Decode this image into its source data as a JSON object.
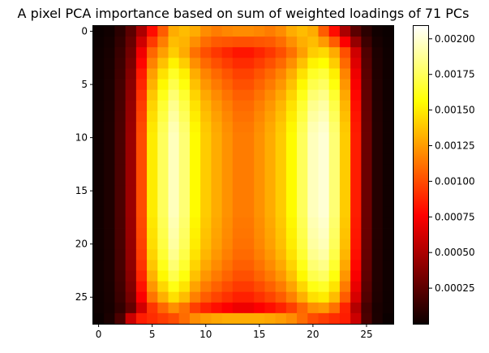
{
  "chart_data": {
    "type": "heatmap",
    "title": "A pixel PCA importance based on sum of weighted loadings of 71 PCs",
    "colormap": "hot",
    "rows": 28,
    "cols": 28,
    "vmin": 0.0,
    "vmax": 0.00209,
    "x_ticks": [
      "0",
      "5",
      "10",
      "15",
      "20",
      "25"
    ],
    "y_ticks": [
      "0",
      "5",
      "10",
      "15",
      "20",
      "25"
    ],
    "colorbar_ticks": [
      "0.00025",
      "0.00050",
      "0.00075",
      "0.00100",
      "0.00125",
      "0.00150",
      "0.00175",
      "0.00200"
    ],
    "colorbar_tick_values": [
      0.00025,
      0.0005,
      0.00075,
      0.001,
      0.00125,
      0.0015,
      0.00175,
      0.002
    ],
    "col_profile_top": [
      0.0,
      2e-05,
      0.0001,
      0.00025,
      0.0005,
      0.0008,
      0.00105,
      0.0013,
      0.00135,
      0.0013,
      0.0012,
      0.00115,
      0.00118,
      0.0012,
      0.0012,
      0.00118,
      0.00115,
      0.0012,
      0.0013,
      0.00135,
      0.0013,
      0.00105,
      0.0008,
      0.0005,
      0.00025,
      0.0001,
      2e-05,
      0.0
    ],
    "col_profile_body": [
      2e-05,
      6e-05,
      0.0002,
      0.00045,
      0.001,
      0.0015,
      0.00175,
      0.00195,
      0.0018,
      0.00155,
      0.0014,
      0.0013,
      0.00122,
      0.00115,
      0.00115,
      0.00122,
      0.0013,
      0.0014,
      0.00155,
      0.00175,
      0.00195,
      0.002,
      0.0018,
      0.0014,
      0.00085,
      0.0003,
      8e-05,
      2e-05
    ],
    "row_profile_body": [
      0.62,
      0.66,
      0.72,
      0.78,
      0.84,
      0.88,
      0.92,
      0.95,
      0.97,
      0.99,
      1.0,
      1.0,
      1.0,
      1.0,
      1.0,
      1.0,
      1.0,
      1.0,
      0.99,
      0.98,
      0.97,
      0.95,
      0.92,
      0.88,
      0.82,
      0.75,
      0.62,
      0.5
    ],
    "bottom_row_values": [
      0.0,
      5e-05,
      0.0002,
      0.0006,
      0.00085,
      0.0009,
      0.00095,
      0.001,
      0.0011,
      0.0012,
      0.00125,
      0.00128,
      0.0013,
      0.0013,
      0.0013,
      0.0013,
      0.00128,
      0.00125,
      0.0012,
      0.0011,
      0.001,
      0.00095,
      0.0009,
      0.00085,
      0.0006,
      0.0002,
      5e-05,
      0.0
    ]
  }
}
